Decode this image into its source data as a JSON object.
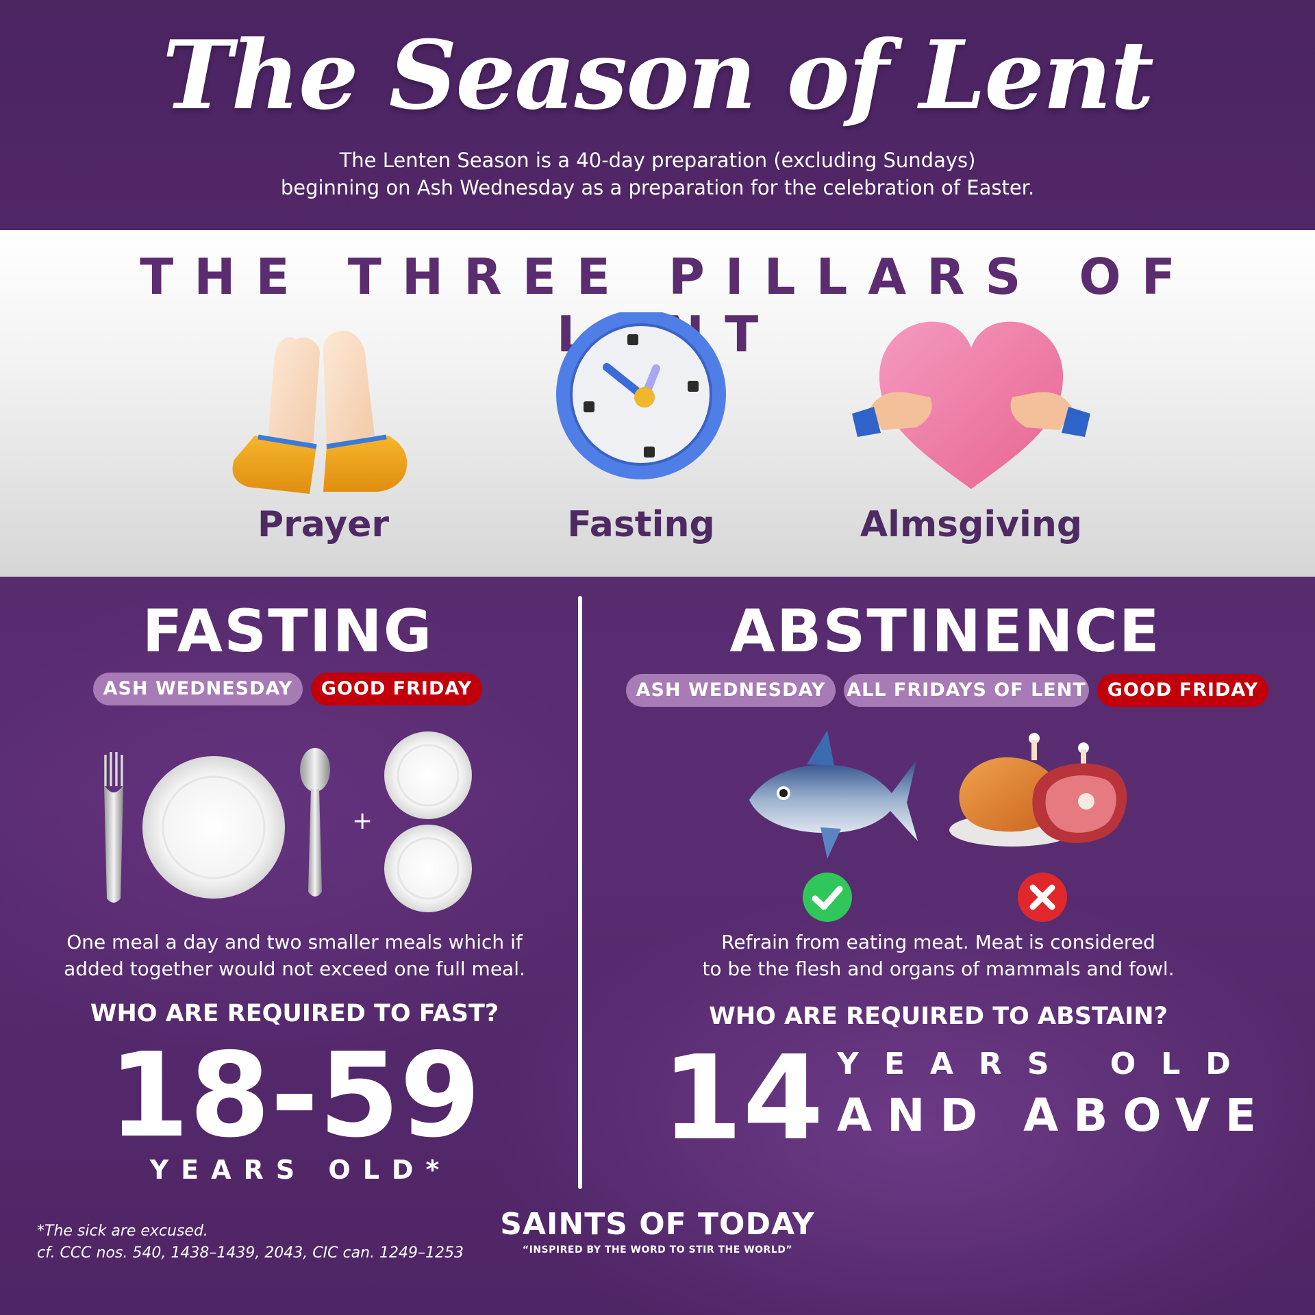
{
  "header": {
    "title": "The Season of Lent",
    "subtitle_line1": "The Lenten Season is a 40-day preparation (excluding Sundays)",
    "subtitle_line2": "beginning on Ash Wednesday as a preparation for the celebration of Easter."
  },
  "pillars": {
    "title": "THE THREE PILLARS OF LENT",
    "items": [
      {
        "label": "Prayer",
        "icon": "praying-hands-icon"
      },
      {
        "label": "Fasting",
        "icon": "clock-icon"
      },
      {
        "label": "Almsgiving",
        "icon": "heart-hug-icon"
      }
    ]
  },
  "fasting": {
    "title": "FASTING",
    "days": [
      "ASH WEDNESDAY",
      "GOOD FRIDAY"
    ],
    "desc_line1": "One meal a day and two smaller meals which if",
    "desc_line2": "added together would not exceed one full meal.",
    "question": "WHO ARE REQUIRED TO FAST?",
    "age": "18-59",
    "age_suffix": "YEARS OLD*"
  },
  "abstinence": {
    "title": "ABSTINENCE",
    "days": [
      "ASH WEDNESDAY",
      "ALL FRIDAYS OF LENT",
      "GOOD FRIDAY"
    ],
    "allowed_icon": "fish-icon",
    "forbidden_icon": "meat-icon",
    "desc_line1": "Refrain from eating meat. Meat is considered",
    "desc_line2": "to be the flesh and organs of mammals and fowl.",
    "question": "WHO ARE REQUIRED TO ABSTAIN?",
    "age": "14",
    "age_line1": "YEARS OLD",
    "age_line2": "AND ABOVE"
  },
  "footer": {
    "note_line1": "*The sick are excused.",
    "note_line2": "cf. CCC nos. 540, 1438–1439, 2043, CIC can. 1249–1253",
    "brand": "SAINTS OF TODAY",
    "tagline": "“INSPIRED BY THE WORD TO STIR THE WORLD”"
  },
  "colors": {
    "purple": "#4b2462",
    "lavender_pill": "#a77bb5",
    "red_pill": "#c2000b",
    "pillar_text": "#4e2a62"
  }
}
